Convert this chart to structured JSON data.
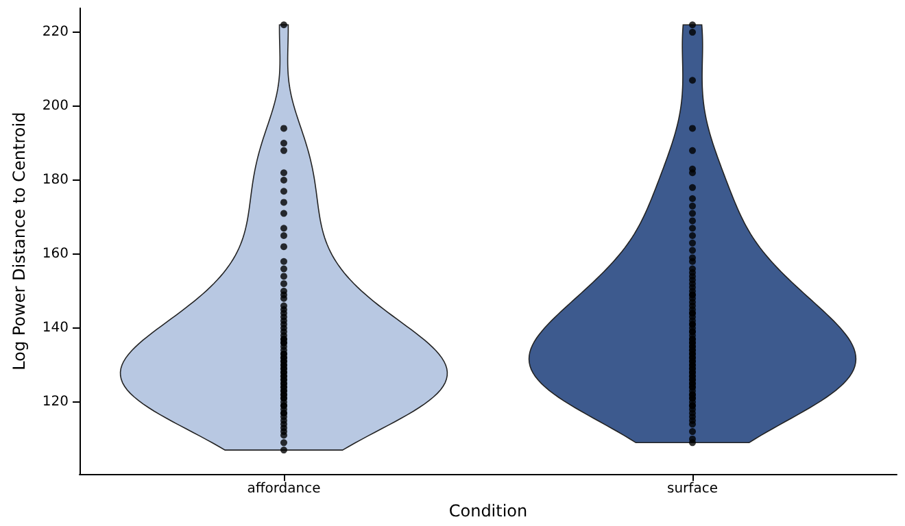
{
  "chart_data": {
    "type": "scatter",
    "categories": [
      "affordance",
      "surface"
    ],
    "colors": [
      "#b8c8e2",
      "#3d5a8e"
    ],
    "xlabel": "Condition",
    "ylabel": "Log Power Distance to Centroid",
    "ylim": [
      100.5,
      226.5
    ],
    "yticks": [
      120,
      140,
      160,
      180,
      200,
      220
    ],
    "grid": false,
    "marker": "circle",
    "series": [
      {
        "color": "#000000",
        "x": [
          "affordance",
          "affordance",
          "affordance",
          "affordance",
          "affordance",
          "affordance",
          "affordance",
          "affordance",
          "affordance",
          "affordance",
          "affordance",
          "affordance",
          "affordance",
          "affordance",
          "affordance",
          "affordance",
          "affordance",
          "affordance",
          "affordance",
          "affordance",
          "affordance",
          "affordance",
          "affordance",
          "affordance",
          "affordance",
          "affordance",
          "affordance",
          "affordance",
          "affordance",
          "affordance",
          "affordance",
          "affordance",
          "affordance",
          "affordance",
          "affordance",
          "affordance",
          "affordance",
          "affordance",
          "affordance",
          "affordance",
          "affordance",
          "affordance",
          "affordance",
          "affordance",
          "affordance",
          "affordance",
          "affordance",
          "affordance",
          "affordance",
          "affordance",
          "affordance",
          "affordance",
          "affordance",
          "affordance",
          "affordance",
          "affordance",
          "affordance",
          "affordance",
          "affordance",
          "affordance",
          "affordance",
          "affordance",
          "affordance",
          "affordance",
          "affordance",
          "affordance",
          "affordance",
          "affordance",
          "affordance",
          "affordance",
          "affordance",
          "affordance",
          "affordance",
          "affordance"
        ],
        "values": [
          107,
          109,
          111,
          112,
          113,
          114,
          115,
          116,
          117,
          117,
          118,
          119,
          119,
          120,
          121,
          121,
          122,
          122,
          123,
          123,
          124,
          124,
          125,
          125,
          126,
          126,
          127,
          127,
          128,
          128,
          129,
          129,
          130,
          130,
          131,
          131,
          132,
          132,
          133,
          133,
          134,
          135,
          136,
          136,
          137,
          137,
          138,
          139,
          140,
          141,
          142,
          143,
          144,
          145,
          146,
          148,
          149,
          150,
          152,
          154,
          156,
          158,
          162,
          165,
          167,
          171,
          174,
          177,
          180,
          182,
          188,
          190,
          194,
          222
        ]
      },
      {
        "color": "#000000",
        "x": [
          "surface",
          "surface",
          "surface",
          "surface",
          "surface",
          "surface",
          "surface",
          "surface",
          "surface",
          "surface",
          "surface",
          "surface",
          "surface",
          "surface",
          "surface",
          "surface",
          "surface",
          "surface",
          "surface",
          "surface",
          "surface",
          "surface",
          "surface",
          "surface",
          "surface",
          "surface",
          "surface",
          "surface",
          "surface",
          "surface",
          "surface",
          "surface",
          "surface",
          "surface",
          "surface",
          "surface",
          "surface",
          "surface",
          "surface",
          "surface",
          "surface",
          "surface",
          "surface",
          "surface",
          "surface",
          "surface",
          "surface",
          "surface",
          "surface",
          "surface",
          "surface",
          "surface",
          "surface",
          "surface",
          "surface",
          "surface",
          "surface",
          "surface",
          "surface",
          "surface",
          "surface",
          "surface",
          "surface",
          "surface",
          "surface",
          "surface",
          "surface",
          "surface",
          "surface",
          "surface",
          "surface",
          "surface",
          "surface",
          "surface",
          "surface",
          "surface",
          "surface",
          "surface",
          "surface",
          "surface",
          "surface",
          "surface",
          "surface",
          "surface",
          "surface"
        ],
        "values": [
          109,
          110,
          112,
          114,
          115,
          116,
          117,
          118,
          119,
          119,
          120,
          121,
          121,
          122,
          122,
          123,
          124,
          124,
          125,
          125,
          126,
          126,
          127,
          127,
          128,
          128,
          129,
          129,
          130,
          130,
          131,
          131,
          132,
          132,
          133,
          133,
          134,
          134,
          135,
          135,
          136,
          136,
          137,
          137,
          138,
          139,
          139,
          140,
          141,
          141,
          142,
          143,
          144,
          144,
          145,
          146,
          147,
          148,
          149,
          149,
          150,
          151,
          152,
          153,
          154,
          155,
          156,
          158,
          159,
          161,
          163,
          165,
          167,
          169,
          171,
          173,
          175,
          178,
          182,
          183,
          188,
          194,
          207,
          220,
          222
        ]
      }
    ]
  }
}
